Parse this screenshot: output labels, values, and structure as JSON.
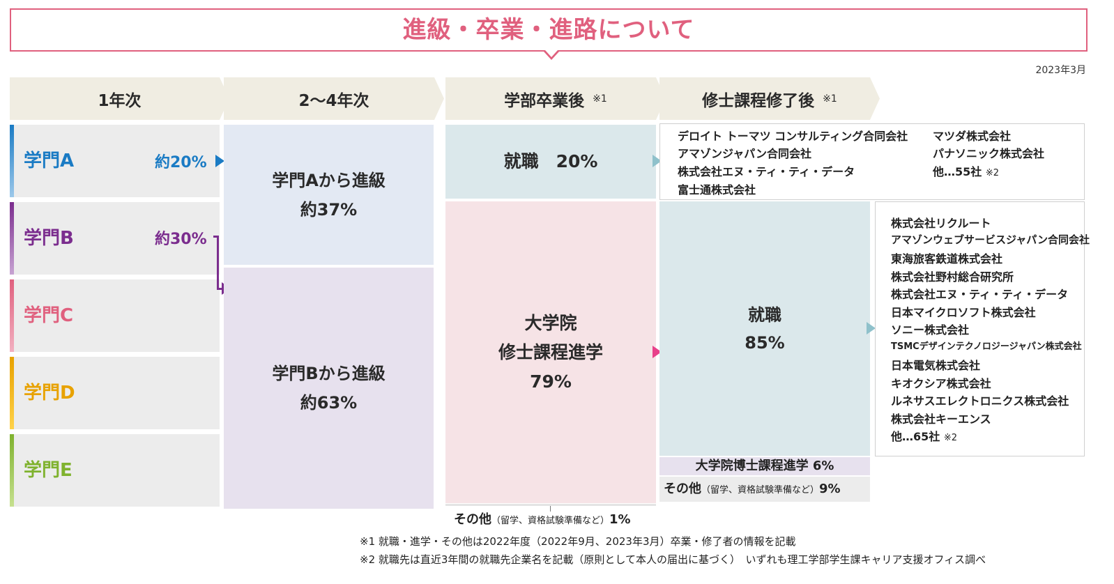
{
  "title": "進級・卒業・進路について",
  "date": "2023年3月",
  "headers": {
    "year1": "1年次",
    "year2_4": "2〜4年次",
    "after_grad": "学部卒業後",
    "after_grad_note": "※1",
    "after_master": "修士課程修了後",
    "after_master_note": "※1"
  },
  "departments": [
    {
      "name": "学門A",
      "color": "#1a7bc4"
    },
    {
      "name": "学門B",
      "color": "#7b2d8e"
    },
    {
      "name": "学門C",
      "color": "#e0607e"
    },
    {
      "name": "学門D",
      "color": "#e8a200"
    },
    {
      "name": "学門E",
      "color": "#7fb22e"
    }
  ],
  "flows": {
    "a_pct": "約20%",
    "b_pct": "約30%"
  },
  "year2_4": {
    "from_a_line1": "学門Aから進級",
    "from_a_line2": "約37%",
    "from_b_line1": "学門Bから進級",
    "from_b_line2": "約63%"
  },
  "after_grad": {
    "employment": "就職　20%",
    "grad_school_line1": "大学院",
    "grad_school_line2": "修士課程進学",
    "grad_school_line3": "79%",
    "other_main": "その他",
    "other_detail": "（留学、資格試験準備など）",
    "other_pct": "1%"
  },
  "grad_companies": {
    "col1": [
      "デロイト トーマツ コンサルティング合同会社",
      "アマゾンジャパン合同会社",
      "株式会社エヌ・ティ・ティ・データ",
      "富士通株式会社"
    ],
    "col2": [
      "マツダ株式会社",
      "パナソニック株式会社"
    ],
    "more": "他…55社",
    "more_note": "※2"
  },
  "after_master": {
    "employment_line1": "就職",
    "employment_line2": "85%",
    "doctoral": "大学院博士課程進学",
    "doctoral_pct": "6%",
    "other_main": "その他",
    "other_detail": "（留学、資格試験準備など）",
    "other_pct": "9%"
  },
  "master_companies": {
    "list": [
      "株式会社リクルート",
      "アマゾンウェブサービスジャパン合同会社",
      "東海旅客鉄道株式会社",
      "株式会社野村総合研究所",
      "株式会社エヌ・ティ・ティ・データ",
      "日本マイクロソフト株式会社",
      "ソニー株式会社",
      "TSMCデザインテクノロジージャパン株式会社",
      "日本電気株式会社",
      "キオクシア株式会社",
      "ルネサスエレクトロニクス株式会社",
      "株式会社キーエンス"
    ],
    "more": "他…65社",
    "more_note": "※2"
  },
  "footnotes": {
    "note1": "※1 就職・進学・その他は2022年度（2022年9月、2023年3月）卒業・修了者の情報を記載",
    "note2": "※2 就職先は直近3年間の就職先企業名を記載（原則として本人の届出に基づく）　いずれも理工学部学生課キャリア支援オフィス調べ"
  },
  "colors": {
    "title_pink": "#e0607e",
    "header_bg": "#f0ede2",
    "dept_bg": "#ececec",
    "c2_a_bg": "#e3e9f3",
    "c2_b_bg": "#e7e1ee",
    "employment_bg": "#dbe8eb",
    "grad_school_bg": "#f6e3e6",
    "doctoral_bg": "#e7e1ee",
    "other_bg": "#ececec"
  }
}
